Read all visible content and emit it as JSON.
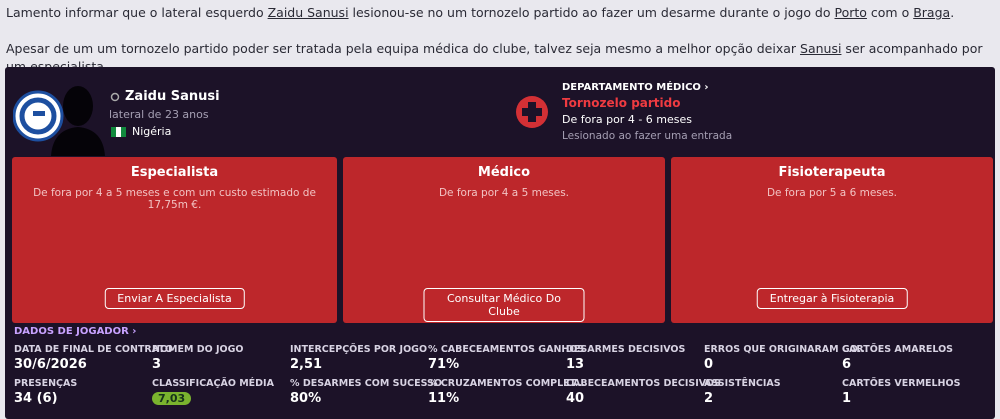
{
  "message": {
    "paragraphs": [
      [
        {
          "text": "Lamento informar que o lateral esquerdo "
        },
        {
          "text": "Zaidu Sanusi",
          "link": true
        },
        {
          "text": " lesionou-se no um tornozelo partido ao fazer um desarme durante o jogo do "
        },
        {
          "text": "Porto",
          "link": true
        },
        {
          "text": " com o "
        },
        {
          "text": "Braga",
          "link": true
        },
        {
          "text": "."
        }
      ],
      [
        {
          "text": "Apesar de um um tornozelo partido poder ser tratada pela equipa médica do clube, talvez seja mesmo a melhor opção deixar "
        },
        {
          "text": "Sanusi",
          "link": true
        },
        {
          "text": " ser acompanhado por um especialista."
        }
      ]
    ]
  },
  "player": {
    "name": "Zaidu Sanusi",
    "description": "lateral de 23 anos",
    "nationality": "Nigéria"
  },
  "medical": {
    "header": "DEPARTAMENTO MÉDICO ›",
    "injury": "Tornozelo partido",
    "duration": "De fora por 4 - 6 meses",
    "cause": "Lesionado ao fazer uma entrada"
  },
  "options": [
    {
      "title": "Especialista",
      "detail": "De fora por 4 a 5 meses e com um custo estimado de 17,75m €.",
      "button": "Enviar A Especialista"
    },
    {
      "title": "Médico",
      "detail": "De fora por 4 a 5 meses.",
      "button": "Consultar Médico Do Clube"
    },
    {
      "title": "Fisioterapeuta",
      "detail": "De fora por 5 a 6 meses.",
      "button": "Entregar à Fisioterapia"
    }
  ],
  "stats": {
    "header": "DADOS DE JOGADOR ›",
    "rows": [
      [
        {
          "label": "DATA DE FINAL DE CONTRATO",
          "value": "30/6/2026"
        },
        {
          "label": "HOMEM DO JOGO",
          "value": "3"
        },
        {
          "label": "INTERCEPÇÕES POR JOGO",
          "value": "2,51"
        },
        {
          "label": "% CABECEAMENTOS GANHOS",
          "value": "71%"
        },
        {
          "label": "DESARMES DECISIVOS",
          "value": "13"
        },
        {
          "label": "ERROS QUE ORIGINARAM GO...",
          "value": "0"
        },
        {
          "label": "CARTÕES AMARELOS",
          "value": "6"
        }
      ],
      [
        {
          "label": "PRESENÇAS",
          "value": "34 (6)"
        },
        {
          "label": "CLASSIFICAÇÃO MÉDIA",
          "value": "7,03",
          "badge": true
        },
        {
          "label": "% DESARMES COM SUCESSO",
          "value": "80%"
        },
        {
          "label": "% CRUZAMENTOS COMPLET...",
          "value": "11%"
        },
        {
          "label": "CABECEAMENTOS DECISIVOS",
          "value": "40"
        },
        {
          "label": "ASSISTÊNCIAS",
          "value": "2"
        },
        {
          "label": "CARTÕES VERMELHOS",
          "value": "1"
        }
      ]
    ]
  }
}
